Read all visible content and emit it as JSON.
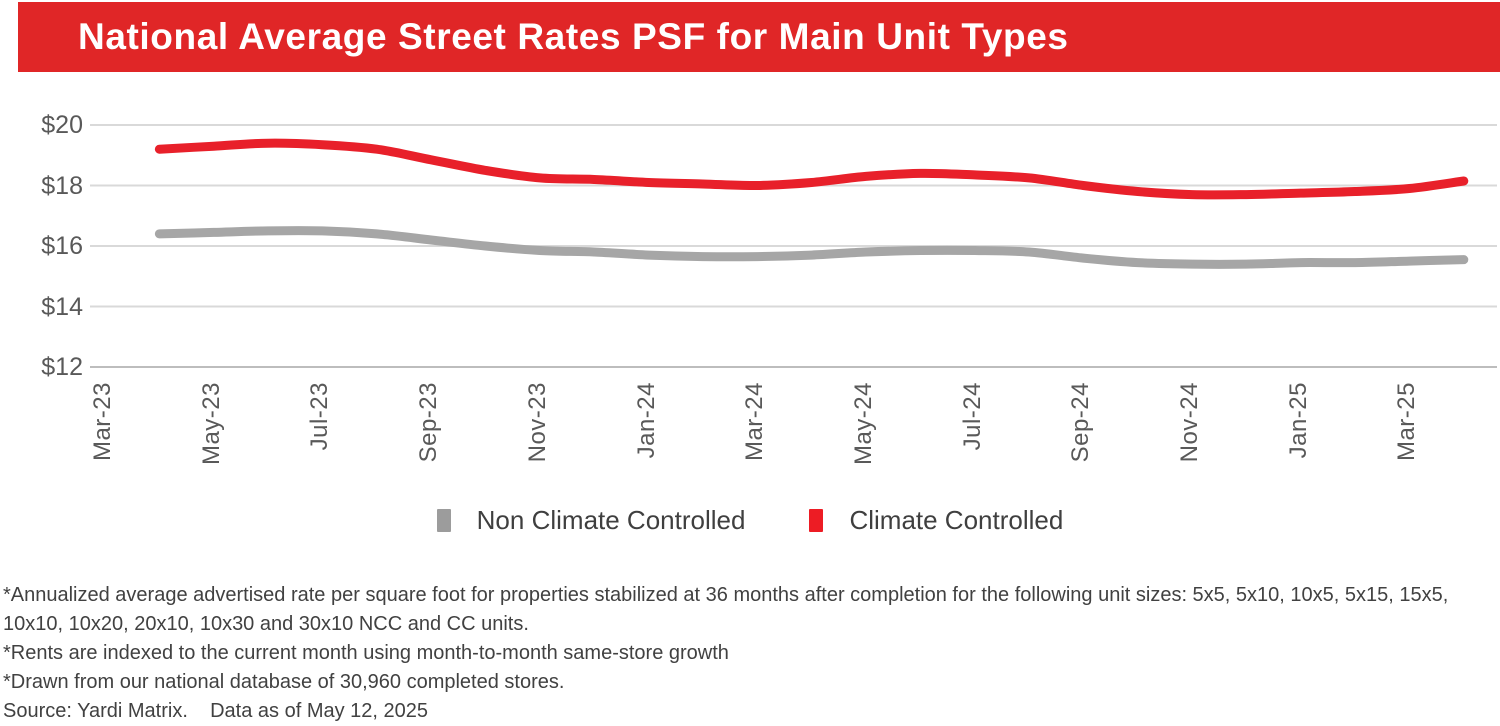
{
  "header": {
    "title": "National Average Street Rates PSF for Main Unit Types",
    "banner_color": "#e02627"
  },
  "legend": {
    "items": [
      {
        "label": "Non Climate Controlled",
        "color": "#9c9c9c"
      },
      {
        "label": "Climate Controlled",
        "color": "#ed1c24"
      }
    ]
  },
  "footnotes": {
    "lines": [
      "*Annualized average advertised rate per square foot for properties stabilized at 36 months after completion for the following unit sizes: 5x5, 5x10, 10x5, 5x15, 15x5,",
      "10x10, 10x20, 20x10, 10x30 and 30x10 NCC and CC units.",
      "*Rents are indexed to the current month using month-to-month same-store growth",
      "*Drawn from our national database of 30,960 completed stores.",
      "Source: Yardi Matrix.    Data as of May 12, 2025"
    ]
  },
  "chart_data": {
    "type": "line",
    "title": "National Average Street Rates PSF for Main Unit Types",
    "xlabel": "",
    "ylabel": "",
    "ylim": [
      12,
      20
    ],
    "grid": true,
    "legend_position": "bottom",
    "x": [
      "Apr-23",
      "May-23",
      "Jun-23",
      "Jul-23",
      "Aug-23",
      "Sep-23",
      "Oct-23",
      "Nov-23",
      "Dec-23",
      "Jan-24",
      "Feb-24",
      "Mar-24",
      "Apr-24",
      "May-24",
      "Jun-24",
      "Jul-24",
      "Aug-24",
      "Sep-24",
      "Oct-24",
      "Nov-24",
      "Dec-24",
      "Jan-25",
      "Feb-25",
      "Mar-25",
      "Apr-25"
    ],
    "series": [
      {
        "name": "Non Climate Controlled",
        "color": "#a6a6a6",
        "values": [
          16.4,
          16.45,
          16.5,
          16.5,
          16.4,
          16.2,
          16.0,
          15.85,
          15.8,
          15.7,
          15.65,
          15.65,
          15.7,
          15.8,
          15.85,
          15.85,
          15.8,
          15.6,
          15.45,
          15.4,
          15.4,
          15.45,
          15.45,
          15.5,
          15.55
        ]
      },
      {
        "name": "Climate Controlled",
        "color": "#e8202a",
        "values": [
          19.2,
          19.3,
          19.4,
          19.35,
          19.2,
          18.85,
          18.5,
          18.25,
          18.2,
          18.1,
          18.05,
          18.0,
          18.1,
          18.3,
          18.4,
          18.35,
          18.25,
          18.0,
          17.8,
          17.7,
          17.7,
          17.75,
          17.8,
          17.9,
          18.15
        ]
      }
    ],
    "yticks": {
      "values": [
        20,
        18,
        16,
        14,
        12
      ],
      "labels": [
        "$20",
        "$18",
        "$16",
        "$14",
        "$12"
      ]
    },
    "xticks": {
      "labels": [
        "Mar-23",
        "May-23",
        "Jul-23",
        "Sep-23",
        "Nov-23",
        "Jan-24",
        "Mar-24",
        "May-24",
        "Jul-24",
        "Sep-24",
        "Nov-24",
        "Jan-25",
        "Mar-25"
      ]
    }
  }
}
